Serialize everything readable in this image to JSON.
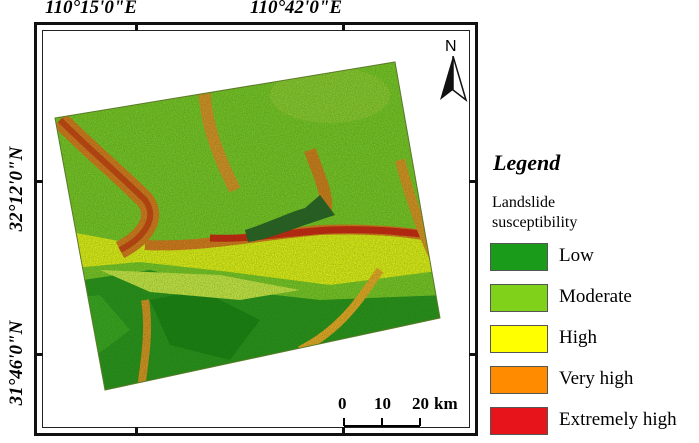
{
  "coordinates": {
    "top": [
      "110°15'0\"E",
      "110°42'0\"E"
    ],
    "left": [
      "32°12'0\"N",
      "31°46'0\"N"
    ]
  },
  "north_arrow": {
    "label": "N",
    "icon": "north-arrow-icon"
  },
  "legend": {
    "title": "Legend",
    "subtitle": "Landslide susceptibility",
    "classes": [
      {
        "label": "Low",
        "color": "#1a9b1a"
      },
      {
        "label": "Moderate",
        "color": "#7fd11a"
      },
      {
        "label": "High",
        "color": "#ffff00"
      },
      {
        "label": "Very high",
        "color": "#ff8c00"
      },
      {
        "label": "Extremely high",
        "color": "#e8141c"
      }
    ]
  },
  "scale_bar": {
    "ticks": [
      "0",
      "10",
      "20"
    ],
    "unit": "km"
  }
}
